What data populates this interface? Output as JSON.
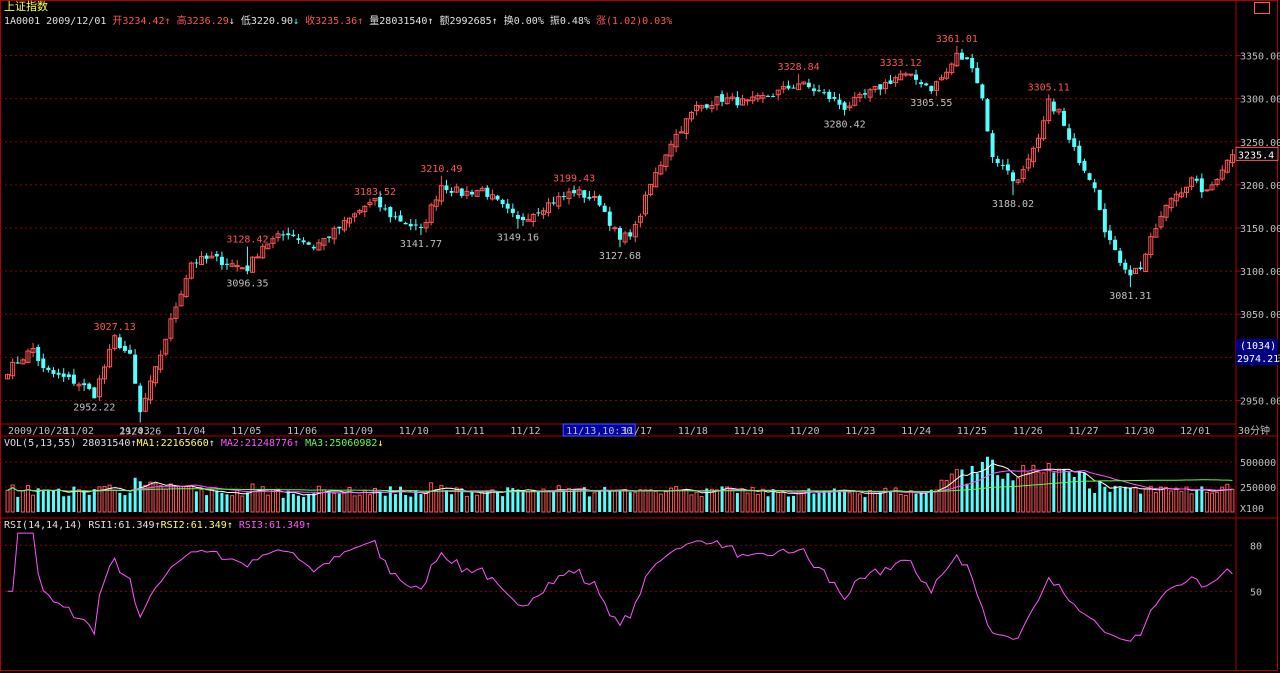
{
  "title": "上证指数",
  "info": {
    "code": "1A0001",
    "date": "2009/12/01",
    "open_label": "开",
    "open": "3234.42",
    "high_label": "高",
    "high": "3236.29",
    "low_label": "低",
    "low": "3220.90",
    "close_label": "收",
    "close": "3235.36",
    "volume_label": "量",
    "volume": "28031540",
    "amount_label": "额",
    "amount": "2992685",
    "turnover_label": "换",
    "turnover": "0.00%",
    "amplitude_label": "振",
    "amplitude": "0.48%",
    "change_label": "涨",
    "change": "(1.02)0.03%"
  },
  "vol_header": {
    "name": "VOL(5,13,55)",
    "value": "28031540",
    "ma1_label": "MA1:",
    "ma1": "22165660",
    "ma2_label": "MA2:",
    "ma2": "21248776",
    "ma3_label": "MA3:",
    "ma3": "25060982"
  },
  "rsi_header": {
    "name": "RSI(14,14,14)",
    "rsi1_label": "RSI1:",
    "rsi1": "61.349",
    "rsi2_label": "RSI2:",
    "rsi2": "61.349",
    "rsi3_label": "RSI3:",
    "rsi3": "61.349"
  },
  "colors": {
    "up": "#ff5454",
    "down": "#54ffff",
    "grid": "#8b0000",
    "axis": "#b00000",
    "ma1": "#ffffff",
    "ma2": "#ff54ff",
    "ma3": "#54ff54",
    "rsi": "#ff54ff",
    "text": "#c0c0c0"
  },
  "chart_data": [
    {
      "type": "candlestick",
      "title": "上证指数",
      "period": "30分钟",
      "ylim": [
        2925,
        3375
      ],
      "yticks": [
        2950,
        3000,
        3050,
        3100,
        3150,
        3200,
        3250,
        3300,
        3350
      ],
      "x_labels": [
        "2009/10/28",
        "11/02",
        "11/03",
        "11/04",
        "11/05",
        "11/06",
        "11/09",
        "11/10",
        "11/11",
        "11/12",
        "11/13,10:30",
        "11/17",
        "11/18",
        "11/19",
        "11/20",
        "11/23",
        "11/24",
        "11/25",
        "11/26",
        "11/27",
        "11/30",
        "12/01"
      ],
      "highlight_label": "11/13,10:30",
      "close_tag": "3235.4",
      "side_tags": [
        "(1034)",
        "2974.21"
      ],
      "annotations": [
        {
          "text": "3027.13",
          "i": 21,
          "value": 3027.13,
          "kind": "high"
        },
        {
          "text": "2952.22",
          "i": 17,
          "value": 2952.22,
          "kind": "low"
        },
        {
          "text": "2924.26",
          "i": 26,
          "value": 2924.26,
          "kind": "low"
        },
        {
          "text": "3128.42",
          "i": 47,
          "value": 3128.42,
          "kind": "high"
        },
        {
          "text": "3096.35",
          "i": 47,
          "value": 3096.35,
          "kind": "low"
        },
        {
          "text": "3183.52",
          "i": 72,
          "value": 3183.52,
          "kind": "high"
        },
        {
          "text": "3141.77",
          "i": 81,
          "value": 3141.77,
          "kind": "low"
        },
        {
          "text": "3210.49",
          "i": 85,
          "value": 3210.49,
          "kind": "high"
        },
        {
          "text": "3149.16",
          "i": 100,
          "value": 3149.16,
          "kind": "low"
        },
        {
          "text": "3199.43",
          "i": 111,
          "value": 3199.43,
          "kind": "high"
        },
        {
          "text": "3127.68",
          "i": 120,
          "value": 3127.68,
          "kind": "low"
        },
        {
          "text": "3328.84",
          "i": 155,
          "value": 3328.84,
          "kind": "high"
        },
        {
          "text": "3280.42",
          "i": 164,
          "value": 3280.42,
          "kind": "low"
        },
        {
          "text": "3333.12",
          "i": 175,
          "value": 3333.12,
          "kind": "high"
        },
        {
          "text": "3305.55",
          "i": 181,
          "value": 3305.55,
          "kind": "low"
        },
        {
          "text": "3361.01",
          "i": 186,
          "value": 3361.01,
          "kind": "high"
        },
        {
          "text": "3188.02",
          "i": 197,
          "value": 3188.02,
          "kind": "low"
        },
        {
          "text": "3305.11",
          "i": 204,
          "value": 3305.11,
          "kind": "high"
        },
        {
          "text": "3081.31",
          "i": 220,
          "value": 3081.31,
          "kind": "low"
        }
      ],
      "anchor_points": [
        [
          0,
          2985
        ],
        [
          5,
          3010
        ],
        [
          7,
          2985
        ],
        [
          10,
          2978
        ],
        [
          14,
          2970
        ],
        [
          17,
          2957
        ],
        [
          20,
          3005
        ],
        [
          21,
          3022
        ],
        [
          24,
          3000
        ],
        [
          26,
          2935
        ],
        [
          29,
          2985
        ],
        [
          33,
          3060
        ],
        [
          36,
          3110
        ],
        [
          40,
          3115
        ],
        [
          44,
          3108
        ],
        [
          47,
          3103
        ],
        [
          50,
          3130
        ],
        [
          55,
          3145
        ],
        [
          60,
          3128
        ],
        [
          65,
          3150
        ],
        [
          70,
          3175
        ],
        [
          72,
          3180
        ],
        [
          75,
          3165
        ],
        [
          81,
          3147
        ],
        [
          85,
          3200
        ],
        [
          89,
          3190
        ],
        [
          93,
          3195
        ],
        [
          100,
          3158
        ],
        [
          105,
          3175
        ],
        [
          111,
          3193
        ],
        [
          116,
          3180
        ],
        [
          120,
          3135
        ],
        [
          123,
          3150
        ],
        [
          126,
          3200
        ],
        [
          130,
          3250
        ],
        [
          135,
          3290
        ],
        [
          140,
          3300
        ],
        [
          145,
          3295
        ],
        [
          150,
          3305
        ],
        [
          155,
          3318
        ],
        [
          160,
          3305
        ],
        [
          164,
          3290
        ],
        [
          170,
          3310
        ],
        [
          175,
          3328
        ],
        [
          179,
          3320
        ],
        [
          181,
          3312
        ],
        [
          184,
          3330
        ],
        [
          186,
          3350
        ],
        [
          189,
          3340
        ],
        [
          191,
          3300
        ],
        [
          193,
          3230
        ],
        [
          195,
          3225
        ],
        [
          197,
          3205
        ],
        [
          199,
          3215
        ],
        [
          202,
          3250
        ],
        [
          204,
          3295
        ],
        [
          206,
          3285
        ],
        [
          208,
          3250
        ],
        [
          210,
          3230
        ],
        [
          213,
          3200
        ],
        [
          215,
          3150
        ],
        [
          217,
          3120
        ],
        [
          220,
          3098
        ],
        [
          222,
          3105
        ],
        [
          225,
          3150
        ],
        [
          228,
          3185
        ],
        [
          232,
          3205
        ],
        [
          235,
          3190
        ],
        [
          238,
          3220
        ],
        [
          240,
          3235
        ]
      ]
    },
    {
      "type": "bar",
      "title": "VOL(5,13,55)",
      "ylim": [
        0,
        620000
      ],
      "yticks": [
        250000,
        500000
      ],
      "ytick_labels": [
        "250000",
        "500000"
      ],
      "unit_tag": "X100",
      "series": [
        {
          "name": "VOL",
          "value": 28031540
        },
        {
          "name": "MA1",
          "value": 22165660
        },
        {
          "name": "MA2",
          "value": 21248776
        },
        {
          "name": "MA3",
          "value": 25060982
        }
      ]
    },
    {
      "type": "line",
      "title": "RSI(14,14,14)",
      "ylim": [
        0,
        90
      ],
      "yticks": [
        50,
        80
      ],
      "series": [
        {
          "name": "RSI1",
          "last": 61.349
        }
      ]
    }
  ]
}
